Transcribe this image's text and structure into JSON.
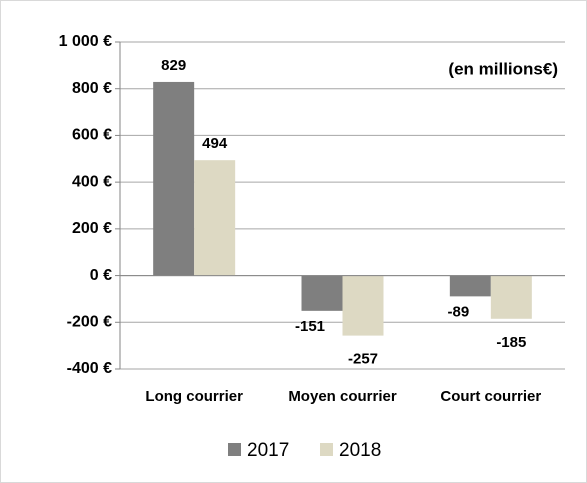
{
  "chart_data": {
    "type": "bar",
    "annotation": "(en millions€)",
    "categories": [
      "Long courrier",
      "Moyen courrier",
      "Court courrier"
    ],
    "series": [
      {
        "name": "2017",
        "color": "#7f7f7f",
        "values": [
          829,
          -151,
          -89
        ]
      },
      {
        "name": "2018",
        "color": "#ddd9c3",
        "values": [
          494,
          -257,
          -185
        ]
      }
    ],
    "ylim": [
      -400,
      1000
    ],
    "yticks": [
      {
        "value": -400,
        "label": "-400 €"
      },
      {
        "value": -200,
        "label": "-200 €"
      },
      {
        "value": 0,
        "label": "0 €"
      },
      {
        "value": 200,
        "label": "200 €"
      },
      {
        "value": 400,
        "label": "400 €"
      },
      {
        "value": 600,
        "label": "600 €"
      },
      {
        "value": 800,
        "label": "800 €"
      },
      {
        "value": 1000,
        "label": "1 000 €"
      }
    ],
    "grid": true,
    "legend": "bottom"
  }
}
